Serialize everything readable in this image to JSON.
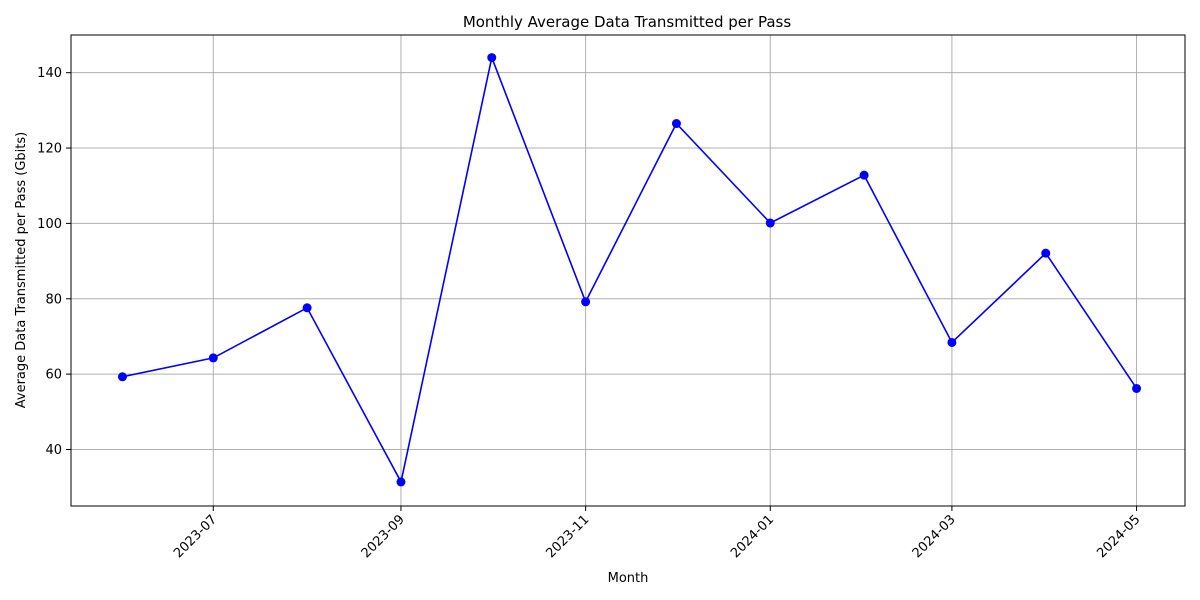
{
  "chart_data": {
    "type": "line",
    "title": "Monthly Average Data Transmitted per Pass",
    "xlabel": "Month",
    "ylabel": "Average Data Transmitted per Pass (Gbits)",
    "x": [
      "2023-06-01",
      "2023-07-01",
      "2023-08-01",
      "2023-09-01",
      "2023-10-01",
      "2023-11-01",
      "2023-12-01",
      "2024-01-01",
      "2024-02-01",
      "2024-03-01",
      "2024-04-01",
      "2024-05-01"
    ],
    "series": [
      {
        "values": [
          59.3,
          64.3,
          77.6,
          31.4,
          144.0,
          79.2,
          126.5,
          100.1,
          112.8,
          68.4,
          92.1,
          56.2
        ],
        "color": "#0000ff"
      }
    ],
    "xlim": [
      "2023-05-15",
      "2024-05-17"
    ],
    "ylim": [
      25,
      150
    ],
    "xticks": [
      "2023-07-01",
      "2023-09-01",
      "2023-11-01",
      "2024-01-01",
      "2024-03-01",
      "2024-05-01"
    ],
    "xtick_labels": [
      "2023-07",
      "2023-09",
      "2023-11",
      "2024-01",
      "2024-03",
      "2024-05"
    ],
    "yticks": [
      40,
      60,
      80,
      100,
      120,
      140
    ],
    "grid": true
  }
}
